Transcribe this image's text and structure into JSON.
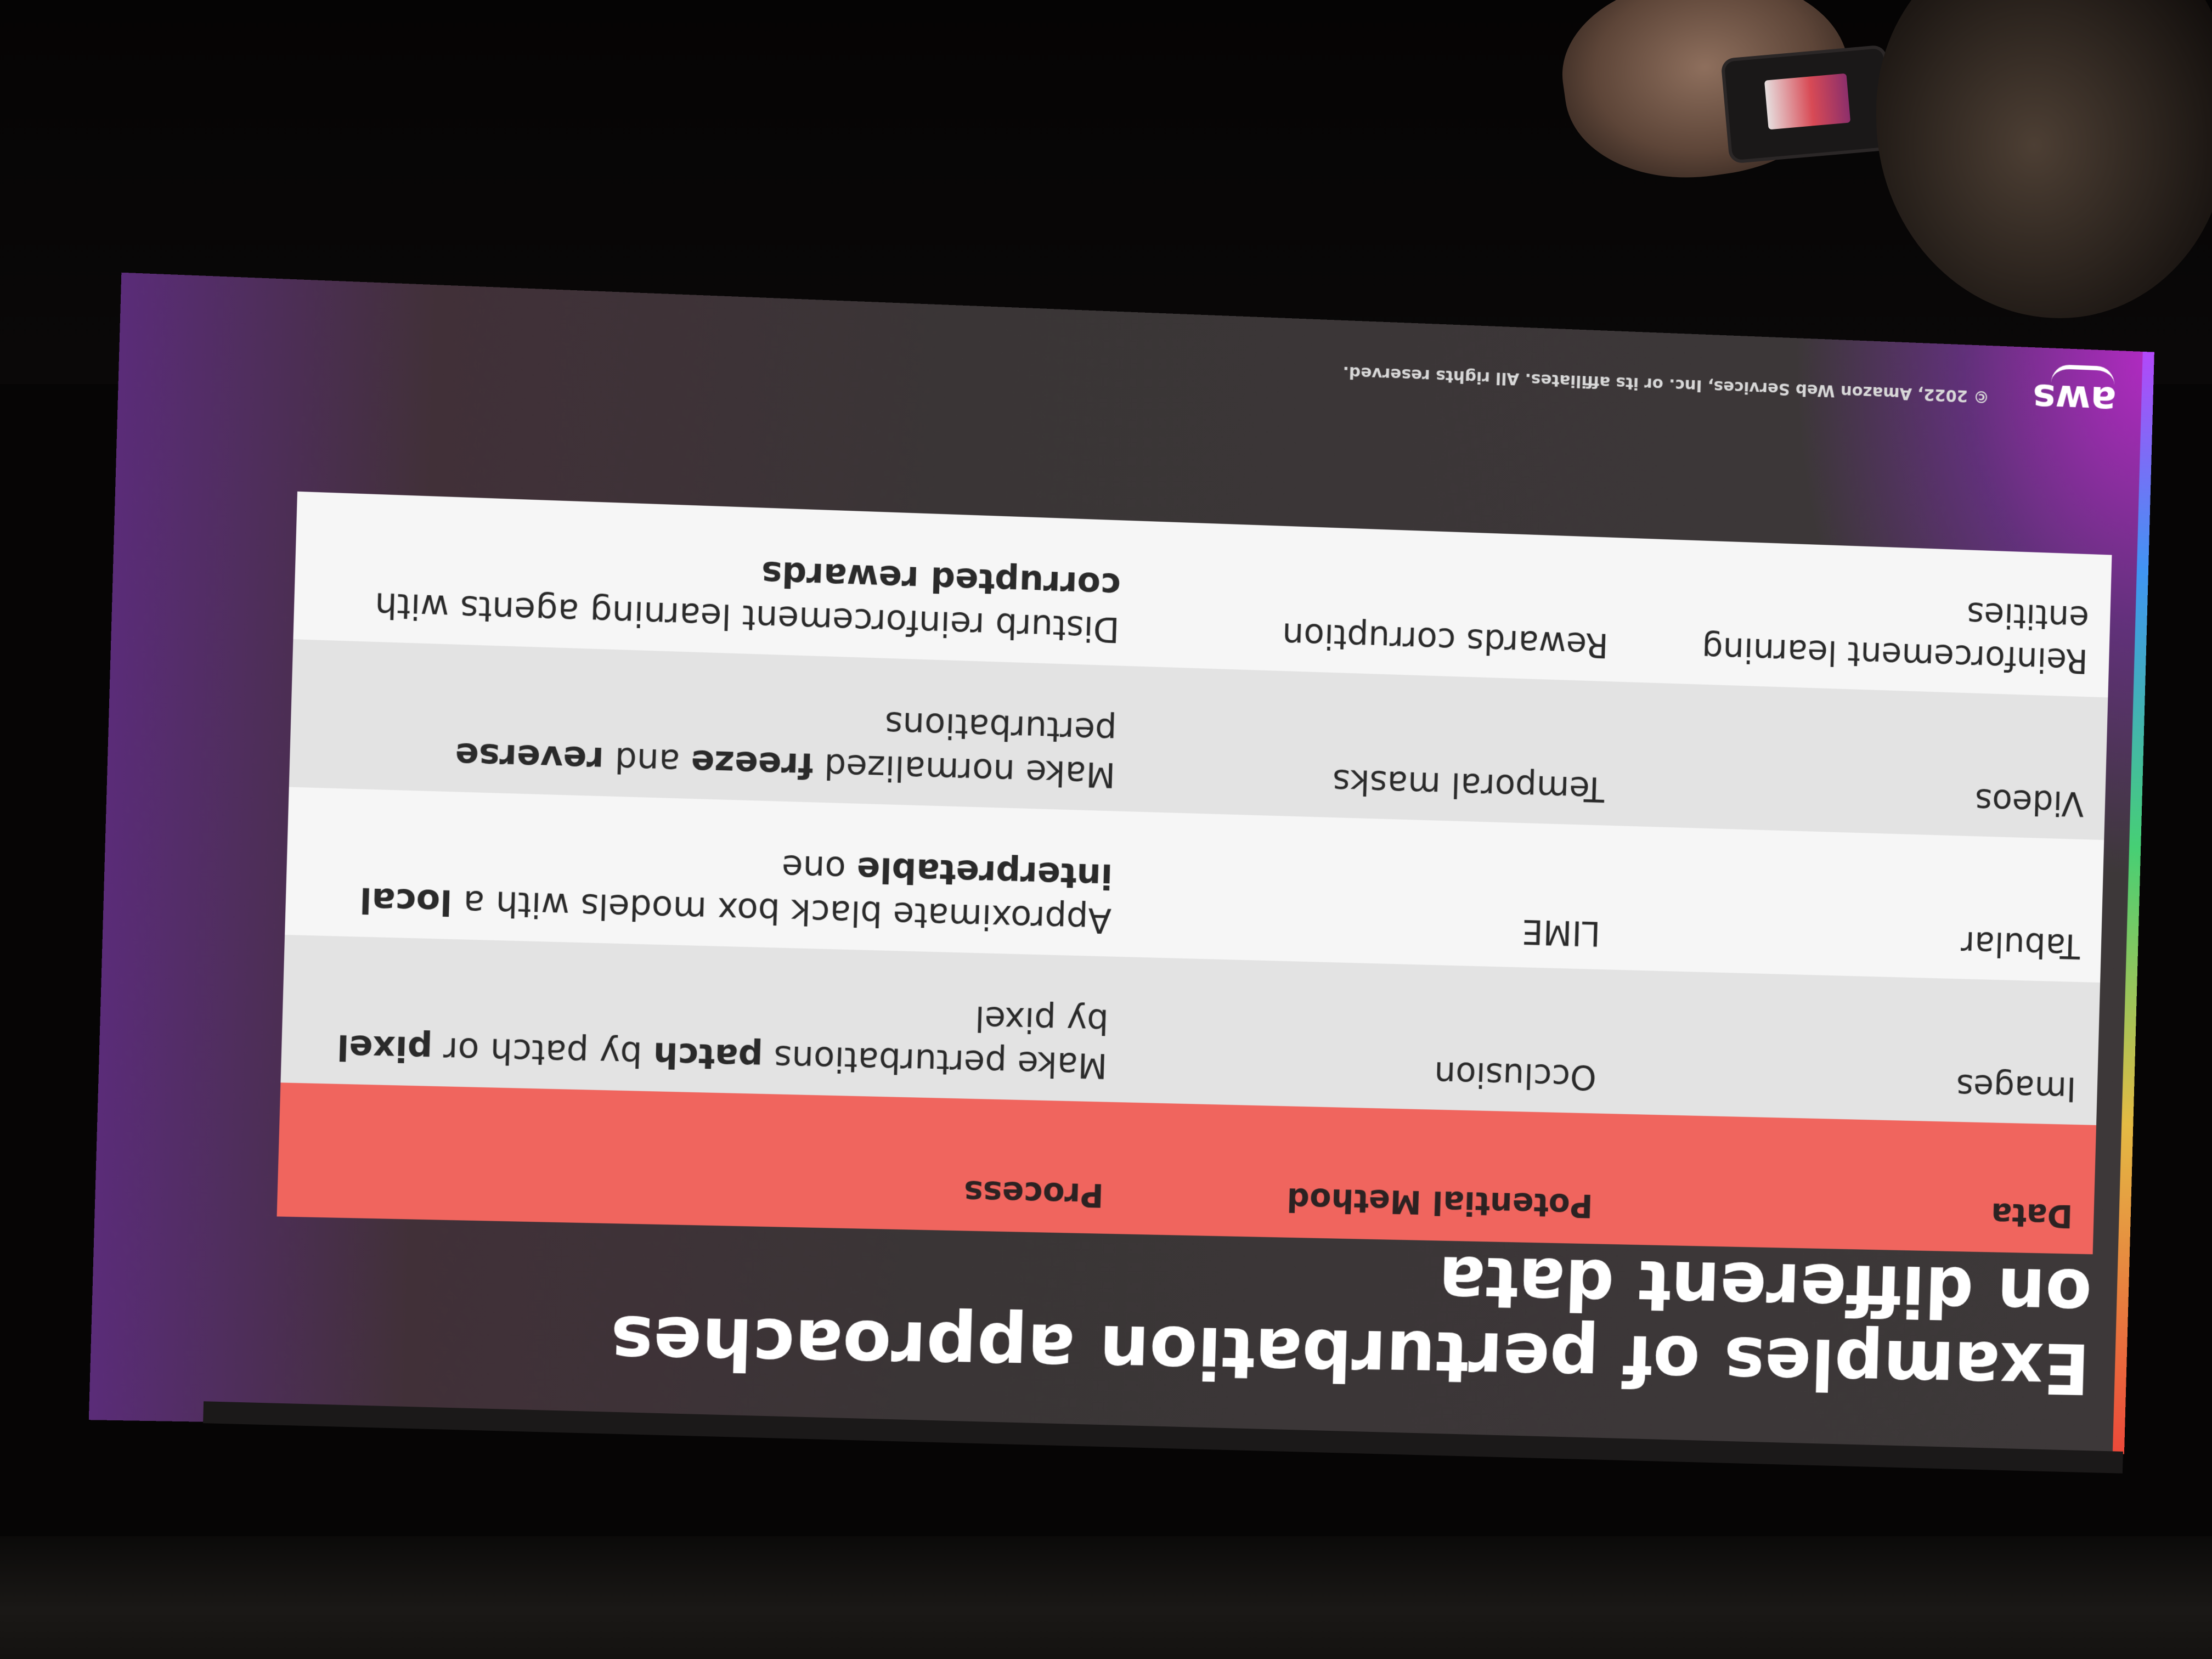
{
  "slide": {
    "title": "Examples of perturbation approaches on different data",
    "table": {
      "headers": [
        "Data",
        "Potential Method",
        "Process"
      ],
      "rows": [
        {
          "data": "Images",
          "method": "Occlusion",
          "process": [
            {
              "t": "Make perturbations "
            },
            {
              "t": "patch",
              "b": true
            },
            {
              "t": " by patch or "
            },
            {
              "t": "pixel",
              "b": true
            },
            {
              "t": " by pixel"
            }
          ]
        },
        {
          "data": "Tabular",
          "method": "LIME",
          "process": [
            {
              "t": "Approximate black box models with a "
            },
            {
              "t": "local interpretable",
              "b": true
            },
            {
              "t": " one"
            }
          ]
        },
        {
          "data": "Videos",
          "method": "Temporal masks",
          "process": [
            {
              "t": "Make normalized "
            },
            {
              "t": "freeze",
              "b": true
            },
            {
              "t": " and "
            },
            {
              "t": "reverse",
              "b": true
            },
            {
              "t": " perturbations"
            }
          ]
        },
        {
          "data": "Reinforcement learning entities",
          "method": "Rewards corruption",
          "process": [
            {
              "t": "Disturb reinforcement learning agents with "
            },
            {
              "t": "corrupted rewards",
              "b": true
            }
          ]
        }
      ]
    },
    "footer": {
      "logo": "aws",
      "copyright": "© 2022, Amazon Web Services, Inc. or its affiliates. All rights reserved."
    }
  },
  "colors": {
    "header_row": "#f0655e",
    "row_odd": "#e3e3e3",
    "row_even": "#f6f6f6",
    "slide_background": "#3b3637",
    "accent_glow": "#c828dc"
  }
}
